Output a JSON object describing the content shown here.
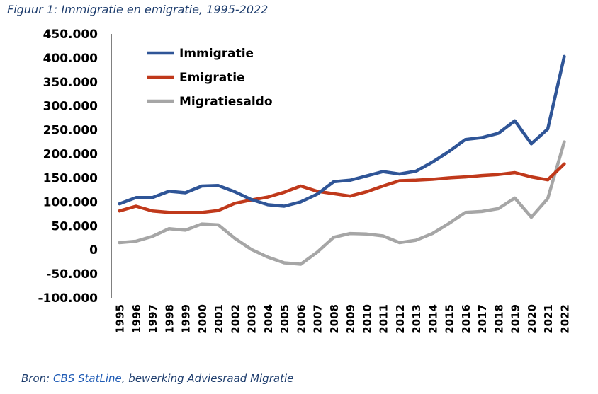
{
  "caption": "Figuur 1: Immigratie en emigratie, 1995-2022",
  "source": {
    "prefix": "Bron: ",
    "link_text": "CBS StatLine",
    "suffix": ", bewerking Adviesraad Migratie"
  },
  "chart_data": {
    "type": "line",
    "title": "",
    "xlabel": "",
    "ylabel": "",
    "ylim": [
      -100000,
      450000
    ],
    "yticks": [
      450000,
      400000,
      350000,
      300000,
      250000,
      200000,
      150000,
      100000,
      50000,
      0,
      -50000,
      -100000
    ],
    "ytick_labels": [
      "450.000",
      "400.000",
      "350.000",
      "300.000",
      "250.000",
      "200.000",
      "150.000",
      "100.000",
      "50.000",
      "0",
      "-50.000",
      "-100.000"
    ],
    "grid": false,
    "legend_position": "top-left",
    "x": [
      "1995",
      "1996",
      "1997",
      "1998",
      "1999",
      "2000",
      "2001",
      "2002",
      "2003",
      "2004",
      "2005",
      "2006",
      "2007",
      "2008",
      "2009",
      "2010",
      "2011",
      "2012",
      "2013",
      "2014",
      "2015",
      "2016",
      "2017",
      "2018",
      "2019",
      "2020",
      "2021",
      "2022"
    ],
    "series": [
      {
        "name": "Immigratie",
        "color": "#2f5597",
        "values": [
          96000,
          109000,
          109000,
          122000,
          119000,
          133000,
          134000,
          121000,
          105000,
          94000,
          91000,
          100000,
          116000,
          142000,
          145000,
          154000,
          163000,
          158000,
          164000,
          183000,
          205000,
          230000,
          234000,
          243000,
          269000,
          221000,
          252000,
          403000
        ]
      },
      {
        "name": "Emigratie",
        "color": "#c0391b",
        "values": [
          81000,
          91000,
          81000,
          78000,
          78000,
          78000,
          82000,
          97000,
          104000,
          110000,
          120000,
          133000,
          122000,
          117000,
          112000,
          121000,
          133000,
          144000,
          145000,
          147000,
          150000,
          152000,
          155000,
          157000,
          161000,
          152000,
          146000,
          179000
        ]
      },
      {
        "name": "Migratiesaldo",
        "color": "#a6a6a6",
        "values": [
          15000,
          18000,
          28000,
          44000,
          41000,
          54000,
          52000,
          24000,
          1000,
          -15000,
          -27000,
          -30000,
          -5000,
          26000,
          34000,
          33000,
          29000,
          15000,
          20000,
          34000,
          55000,
          78000,
          80000,
          86000,
          108000,
          68000,
          107000,
          225000
        ]
      }
    ]
  }
}
